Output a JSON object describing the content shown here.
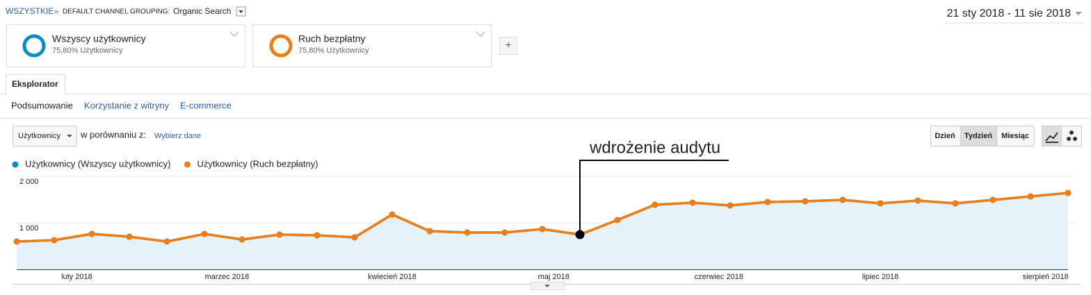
{
  "breadcrumb": {
    "root": "WSZYSTKIE",
    "separator": "»",
    "dimension": "DEFAULT CHANNEL GROUPING:",
    "value": "Organic Search"
  },
  "date_range": "21 sty 2018 - 11 sie 2018",
  "segments": [
    {
      "name": "Wszyscy użytkownicy",
      "detail": "75,80% Użytkownicy"
    },
    {
      "name": "Ruch bezpłatny",
      "detail": "75,80% Użytkownicy"
    }
  ],
  "add_segment": "+",
  "tab": "Eksplorator",
  "subtabs": [
    "Podsumowanie",
    "Korzystanie z witryny",
    "E-commerce"
  ],
  "metric_select": "Użytkownicy",
  "compare_label": "w porównaniu z:",
  "compare_link": "Wybierz dane",
  "granularity": [
    "Dzień",
    "Tydzień",
    "Miesiąc"
  ],
  "chart_data": {
    "type": "line",
    "annotation": "wdrożenie audytu",
    "categories": [
      null,
      null,
      null,
      null,
      null,
      null,
      null,
      null,
      null,
      null,
      null,
      null,
      null,
      null,
      null,
      null,
      null,
      null,
      null,
      null,
      null,
      null,
      null,
      null,
      null,
      null,
      null,
      null,
      null
    ],
    "series": [
      {
        "name": "Użytkownicy (Wszyscy użytkownicy)",
        "color": "#058dc7",
        "values": [
          597,
          627,
          761,
          701,
          597,
          761,
          642,
          746,
          731,
          687,
          1179,
          821,
          791,
          791,
          866,
          746,
          1060,
          1388,
          1433,
          1373,
          1448,
          1463,
          1493,
          1418,
          1478,
          1418,
          1493,
          1567,
          1642
        ]
      },
      {
        "name": "Użytkownicy (Ruch bezpłatny)",
        "color": "#ed7e17",
        "values": [
          597,
          627,
          761,
          701,
          597,
          761,
          642,
          746,
          731,
          687,
          1179,
          821,
          791,
          791,
          866,
          746,
          1060,
          1388,
          1433,
          1373,
          1448,
          1463,
          1493,
          1418,
          1478,
          1418,
          1493,
          1567,
          1642
        ]
      }
    ],
    "ylim": [
      0,
      2000
    ],
    "yticks": [
      {
        "value": 1000,
        "label": "1 000"
      },
      {
        "value": 2000,
        "label": "2 000"
      }
    ],
    "xticks": [
      {
        "value": 1.6,
        "label": "luty 2018"
      },
      {
        "value": 5.6,
        "label": "marzec 2018"
      },
      {
        "value": 10,
        "label": "kwiecień 2018"
      },
      {
        "value": 14.3,
        "label": "maj 2018"
      },
      {
        "value": 18.7,
        "label": "czerwiec 2018"
      },
      {
        "value": 23,
        "label": "lipiec 2018"
      },
      {
        "value": 27.4,
        "label": "sierpień 2018"
      }
    ],
    "grid": true
  }
}
